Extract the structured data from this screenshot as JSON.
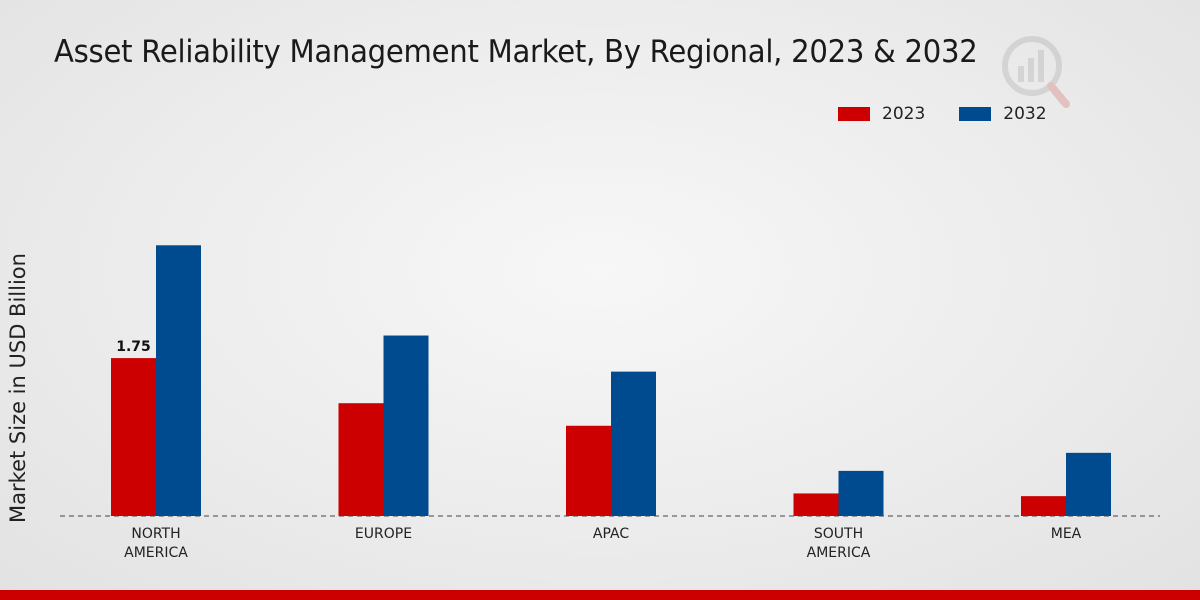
{
  "chart_data": {
    "type": "bar",
    "title": "Asset Reliability Management Market, By Regional, 2023 & 2032",
    "xlabel": "",
    "ylabel": "Market Size in USD Billion",
    "categories": [
      "NORTH\nAMERICA",
      "EUROPE",
      "APAC",
      "SOUTH\nAMERICA",
      "MEA"
    ],
    "series": [
      {
        "name": "2023",
        "color": "#cc0000",
        "values": [
          1.75,
          1.25,
          1.0,
          0.25,
          0.22
        ]
      },
      {
        "name": "2032",
        "color": "#004a8f",
        "values": [
          3.0,
          2.0,
          1.6,
          0.5,
          0.7
        ]
      }
    ],
    "data_labels": [
      {
        "series": 0,
        "index": 0,
        "text": "1.75"
      }
    ],
    "ylim": [
      0,
      4.2
    ],
    "grid": false,
    "legend": "top-right"
  }
}
